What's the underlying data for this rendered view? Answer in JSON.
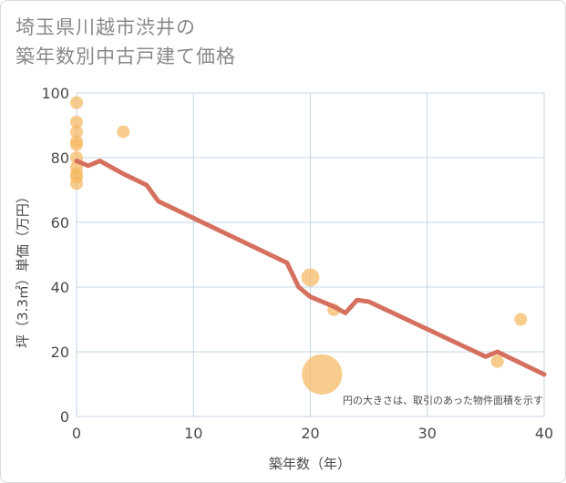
{
  "title_line1": "埼玉県川越市渋井の",
  "title_line2": "築年数別中古戸建て価格",
  "chart_data": {
    "type": "scatter",
    "title": "埼玉県川越市渋井の築年数別中古戸建て価格",
    "xlabel": "築年数（年）",
    "ylabel": "坪（3.3㎡）単価（万円）",
    "xlim": [
      0,
      40
    ],
    "ylim": [
      0,
      100
    ],
    "xticks": [
      0,
      10,
      20,
      30,
      40
    ],
    "yticks": [
      0,
      20,
      40,
      60,
      80,
      100
    ],
    "grid": true,
    "note": "円の大きさは、取引のあった物件面積を示す",
    "colors": {
      "bubble": "#f5b961",
      "line": "#d5705e",
      "grid": "#c5d6e4",
      "axis": "#b3c6d6"
    },
    "series": [
      {
        "kind": "bubble",
        "points": [
          {
            "x": 0,
            "y": 97,
            "size": 1
          },
          {
            "x": 0,
            "y": 91,
            "size": 1
          },
          {
            "x": 0,
            "y": 88,
            "size": 1
          },
          {
            "x": 0,
            "y": 85,
            "size": 1
          },
          {
            "x": 0,
            "y": 84,
            "size": 1
          },
          {
            "x": 0,
            "y": 80,
            "size": 1
          },
          {
            "x": 0,
            "y": 77,
            "size": 1
          },
          {
            "x": 0,
            "y": 75,
            "size": 1
          },
          {
            "x": 0,
            "y": 74,
            "size": 1
          },
          {
            "x": 0,
            "y": 72,
            "size": 1
          },
          {
            "x": 4,
            "y": 88,
            "size": 1
          },
          {
            "x": 20,
            "y": 43,
            "size": 2
          },
          {
            "x": 21,
            "y": 13,
            "size": 10
          },
          {
            "x": 22,
            "y": 33,
            "size": 1
          },
          {
            "x": 36,
            "y": 17,
            "size": 1
          },
          {
            "x": 38,
            "y": 30,
            "size": 1
          }
        ]
      },
      {
        "kind": "line",
        "x": [
          0,
          1,
          2,
          4,
          6,
          7,
          18,
          19,
          20,
          22,
          23,
          24,
          25,
          35,
          36,
          40
        ],
        "y": [
          79,
          77.5,
          79,
          75,
          71.5,
          66.5,
          47.5,
          40,
          37,
          34,
          32,
          36,
          35.5,
          18.5,
          20,
          13
        ]
      }
    ]
  }
}
